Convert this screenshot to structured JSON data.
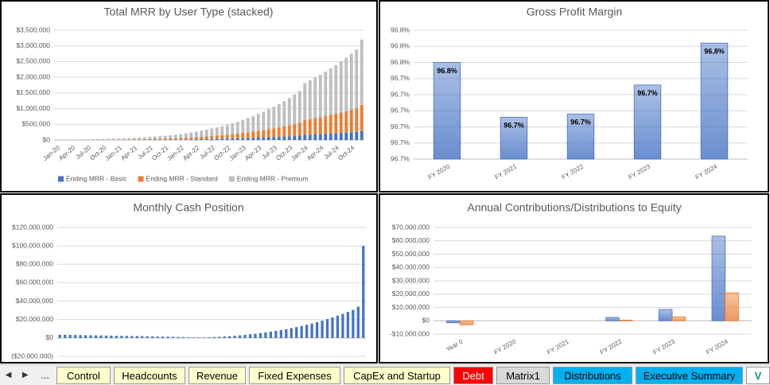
{
  "chart_data": [
    {
      "type": "bar",
      "title": "Total MRR by User Type (stacked)",
      "stacked": true,
      "grid": true,
      "legend": "bottom",
      "categories": [
        "Jan-20",
        null,
        null,
        "Apr-20",
        null,
        null,
        "Jul-20",
        null,
        null,
        "Oct-20",
        null,
        null,
        "Jan-21",
        null,
        null,
        "Apr-21",
        null,
        null,
        "Jul-21",
        null,
        null,
        "Oct-21",
        null,
        null,
        "Jan-22",
        null,
        null,
        "Apr-22",
        null,
        null,
        "Jul-22",
        null,
        null,
        "Oct-22",
        null,
        null,
        "Jan-23",
        null,
        null,
        "Apr-23",
        null,
        null,
        "Jul-23",
        null,
        null,
        "Oct-23",
        null,
        null,
        "Jan-24",
        null,
        null,
        "Apr-24",
        null,
        null,
        "Jul-24",
        null,
        null,
        "Oct-24",
        null,
        null
      ],
      "series": [
        {
          "name": "Ending MRR - Basic",
          "color": "#4472c4",
          "values": [
            1000,
            1000,
            1000,
            1000,
            2000,
            2000,
            2000,
            2000,
            3000,
            3000,
            3000,
            4000,
            4000,
            5000,
            5000,
            6000,
            7000,
            8000,
            9000,
            10000,
            11000,
            12000,
            14000,
            15000,
            17000,
            19000,
            22000,
            24000,
            27000,
            30000,
            33000,
            36000,
            40000,
            44000,
            48000,
            52000,
            58000,
            63000,
            68000,
            75000,
            81000,
            88000,
            95000,
            104000,
            112000,
            121000,
            131000,
            140000,
            164000,
            171000,
            179000,
            187000,
            196000,
            205000,
            215000,
            225000,
            236000,
            248000,
            259000,
            288000
          ]
        },
        {
          "name": "Ending MRR - Standard",
          "color": "#ed7d31",
          "values": [
            3000,
            3000,
            4000,
            4000,
            5000,
            5000,
            6000,
            7000,
            8000,
            8000,
            9000,
            10000,
            12000,
            14000,
            16000,
            18000,
            20000,
            23000,
            25000,
            29000,
            32000,
            36000,
            40000,
            44000,
            49000,
            56000,
            62000,
            70000,
            77000,
            86000,
            95000,
            105000,
            115000,
            126000,
            138000,
            150000,
            166000,
            182000,
            198000,
            216000,
            234000,
            255000,
            276000,
            299000,
            322000,
            348000,
            377000,
            406000,
            473000,
            494000,
            517000,
            541000,
            567000,
            593000,
            621000,
            650000,
            681000,
            715000,
            749000,
            832000
          ]
        },
        {
          "name": "Ending MRR - Premium",
          "color": "#bfbfbf",
          "values": [
            6000,
            8000,
            9000,
            11000,
            11000,
            13000,
            15000,
            17000,
            18000,
            21000,
            24000,
            26000,
            29000,
            33000,
            39000,
            44000,
            50000,
            56000,
            64000,
            71000,
            80000,
            89000,
            98000,
            109000,
            124000,
            140000,
            156000,
            174000,
            194000,
            214000,
            237000,
            261000,
            287000,
            315000,
            344000,
            376000,
            416000,
            455000,
            494000,
            539000,
            585000,
            637000,
            689000,
            747000,
            806000,
            871000,
            942000,
            1014000,
            1183000,
            1235000,
            1294000,
            1352000,
            1417000,
            1482000,
            1554000,
            1625000,
            1703000,
            1787000,
            1872000,
            2080000
          ]
        }
      ],
      "ylim": [
        0,
        3500000
      ],
      "yticks": [
        {
          "value": 0,
          "label": "$0"
        },
        {
          "value": 500000,
          "label": "$500,000"
        },
        {
          "value": 1000000,
          "label": "$1,000,000"
        },
        {
          "value": 1500000,
          "label": "$1,500,000"
        },
        {
          "value": 2000000,
          "label": "$2,000,000"
        },
        {
          "value": 2500000,
          "label": "$2,500,000"
        },
        {
          "value": 3000000,
          "label": "$3,000,000"
        },
        {
          "value": 3500000,
          "label": "$3,500,000"
        }
      ]
    },
    {
      "type": "bar",
      "title": "Gross Profit Margin",
      "grid": true,
      "color": "#4472c4",
      "categories": [
        "FY 2020",
        "FY 2021",
        "FY 2022",
        "FY 2023",
        "FY 2024"
      ],
      "values": [
        96.76,
        96.709,
        96.712,
        96.739,
        96.778
      ],
      "value_labels": [
        "96.8%",
        "96.7%",
        "96.7%",
        "96.7%",
        "96.8%"
      ],
      "ylim": [
        96.67,
        96.79
      ],
      "yticks": [
        {
          "value": 96.67,
          "label": "96.7%"
        },
        {
          "value": 96.685,
          "label": "96.7%"
        },
        {
          "value": 96.7,
          "label": "96.7%"
        },
        {
          "value": 96.715,
          "label": "96.7%"
        },
        {
          "value": 96.73,
          "label": "96.7%"
        },
        {
          "value": 96.745,
          "label": "96.7%"
        },
        {
          "value": 96.76,
          "label": "96.8%"
        },
        {
          "value": 96.775,
          "label": "96.8%"
        },
        {
          "value": 96.79,
          "label": "96.8%"
        }
      ]
    },
    {
      "type": "bar",
      "title": "Monthly Cash Position",
      "grid": true,
      "color": "#4472c4",
      "values": [
        3500000,
        3400000,
        3300000,
        3200000,
        3100000,
        3000000,
        2900000,
        2800000,
        2700000,
        2600000,
        2500000,
        2400000,
        2300000,
        2200000,
        2100000,
        2000000,
        1900000,
        1800000,
        1700000,
        1600000,
        1500000,
        1400000,
        1300000,
        1200000,
        1000000,
        800000,
        600000,
        500000,
        600000,
        800000,
        1000000,
        1300000,
        1600000,
        2000000,
        2400000,
        2900000,
        3400000,
        4000000,
        4600000,
        5300000,
        6000000,
        6800000,
        7700000,
        8600000,
        9600000,
        10700000,
        11800000,
        13000000,
        14300000,
        15700000,
        17200000,
        18800000,
        20500000,
        22300000,
        24200000,
        26200000,
        28300000,
        30500000,
        34000000,
        100000000
      ],
      "ylim": [
        -20000000,
        120000000
      ],
      "yticks": [
        {
          "value": -20000000,
          "label": "($20,000,000)"
        },
        {
          "value": 0,
          "label": "$0"
        },
        {
          "value": 20000000,
          "label": "$20,000,000"
        },
        {
          "value": 40000000,
          "label": "$40,000,000"
        },
        {
          "value": 60000000,
          "label": "$60,000,000"
        },
        {
          "value": 80000000,
          "label": "$80,000,000"
        },
        {
          "value": 100000000,
          "label": "$100,000,000"
        },
        {
          "value": 120000000,
          "label": "$120,000,000"
        }
      ]
    },
    {
      "type": "bar",
      "title": "Annual Contributions/Distributions to Equity",
      "grid": true,
      "categories": [
        "Year 0",
        "FY 2020",
        "FY 2021",
        "FY 2022",
        "FY 2023",
        "FY 2024"
      ],
      "series": [
        {
          "color": "#4472c4",
          "values": [
            -1500000,
            0,
            0,
            2500000,
            8500000,
            63500000
          ]
        },
        {
          "color": "#ed7d31",
          "values": [
            -3000000,
            0,
            0,
            500000,
            3000000,
            21000000
          ]
        }
      ],
      "ylim": [
        -10000000,
        70000000
      ],
      "yticks": [
        {
          "value": -10000000,
          "label": "-$10,000,000"
        },
        {
          "value": 0,
          "label": "$0"
        },
        {
          "value": 10000000,
          "label": "$10,000,000"
        },
        {
          "value": 20000000,
          "label": "$20,000,000"
        },
        {
          "value": 30000000,
          "label": "$30,000,000"
        },
        {
          "value": 40000000,
          "label": "$40,000,000"
        },
        {
          "value": 50000000,
          "label": "$50,000,000"
        },
        {
          "value": 60000000,
          "label": "$60,000,000"
        },
        {
          "value": 70000000,
          "label": "$70,000,000"
        }
      ]
    }
  ],
  "sheet_tabs": {
    "more": "...",
    "tabs": [
      "Control",
      "Headcounts",
      "Revenue",
      "Fixed Expenses",
      "CapEx and Startup",
      "Debt",
      "Matrix1",
      "Distributions",
      "Executive Summary",
      "V"
    ]
  }
}
